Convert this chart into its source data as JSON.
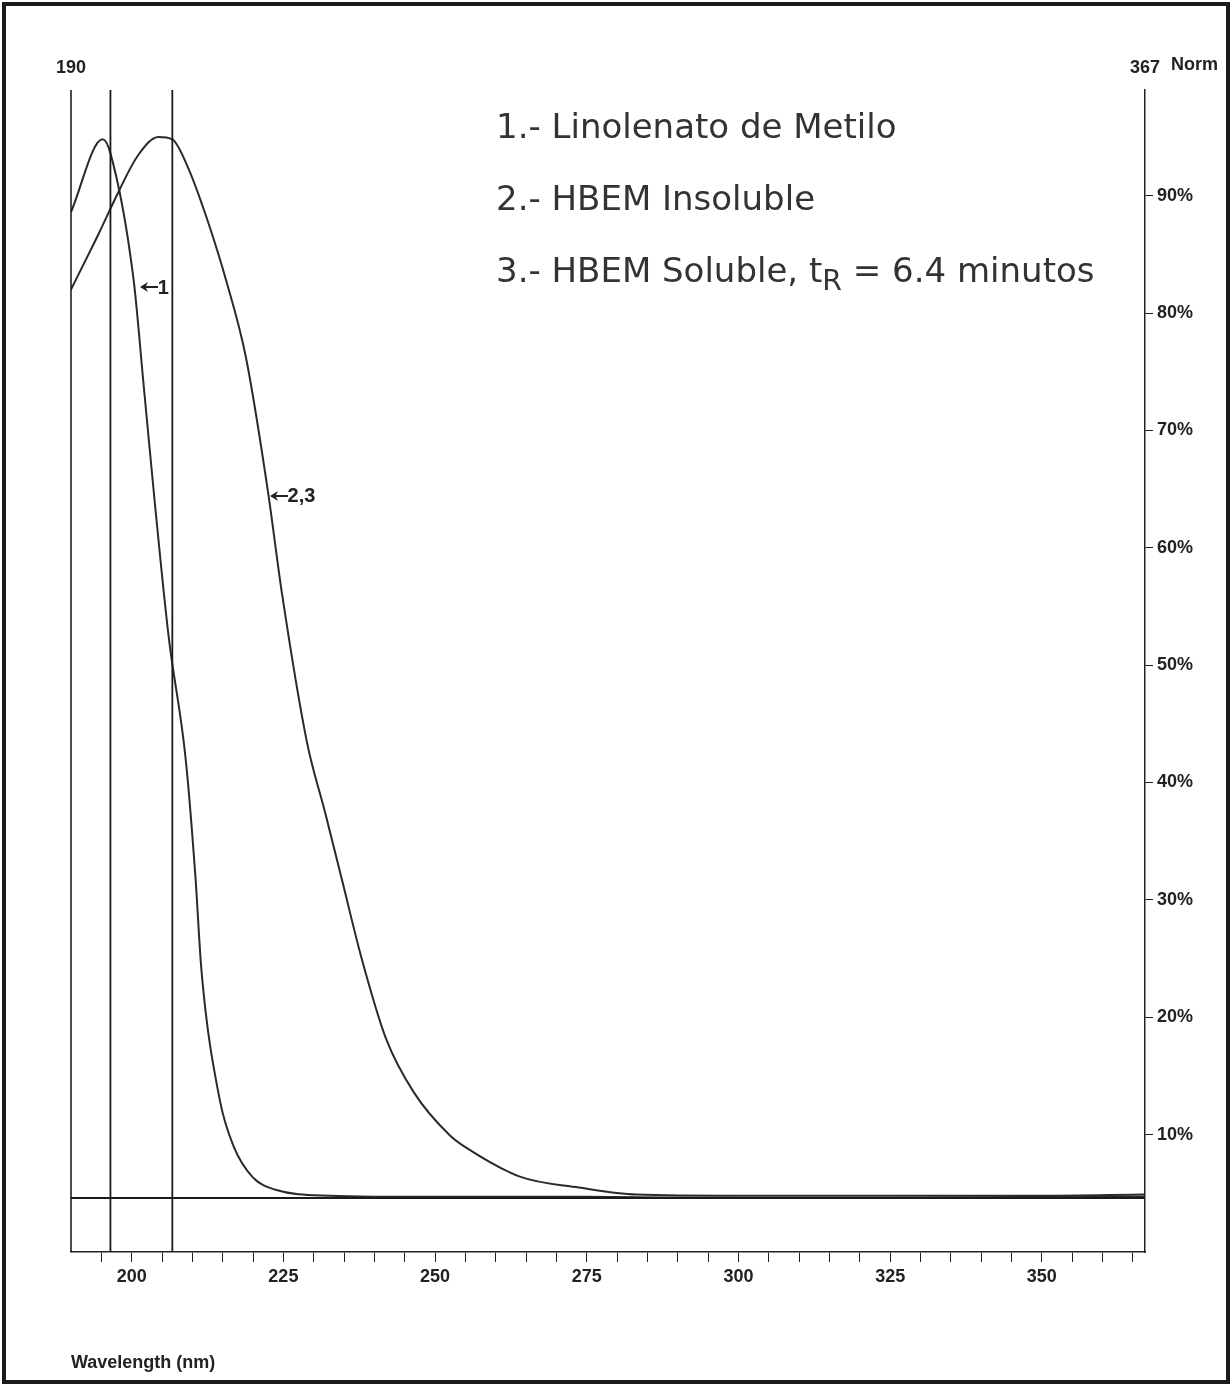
{
  "chart_data": {
    "type": "line",
    "xlabel": "Wavelength (nm)",
    "ylabel": "Norm",
    "xlim": [
      190,
      367
    ],
    "ylim": [
      0,
      99
    ],
    "x2lim": [
      190,
      367
    ],
    "x2ticks": [
      190,
      367
    ],
    "xticks": [
      {
        "value": 195,
        "label": null
      },
      200,
      {
        "value": 205,
        "label": null
      },
      {
        "value": 210,
        "label": null
      },
      {
        "value": 215,
        "label": null
      },
      {
        "value": 220,
        "label": null
      },
      225,
      {
        "value": 230,
        "label": null
      },
      {
        "value": 235,
        "label": null
      },
      {
        "value": 240,
        "label": null
      },
      {
        "value": 245,
        "label": null
      },
      250,
      {
        "value": 255,
        "label": null
      },
      {
        "value": 260,
        "label": null
      },
      {
        "value": 265,
        "label": null
      },
      {
        "value": 270,
        "label": null
      },
      275,
      {
        "value": 280,
        "label": null
      },
      {
        "value": 285,
        "label": null
      },
      {
        "value": 290,
        "label": null
      },
      {
        "value": 295,
        "label": null
      },
      300,
      {
        "value": 305,
        "label": null
      },
      {
        "value": 310,
        "label": null
      },
      {
        "value": 315,
        "label": null
      },
      {
        "value": 320,
        "label": null
      },
      325,
      {
        "value": 330,
        "label": null
      },
      {
        "value": 335,
        "label": null
      },
      {
        "value": 340,
        "label": null
      },
      {
        "value": 345,
        "label": null
      },
      350,
      {
        "value": 355,
        "label": null
      },
      {
        "value": 360,
        "label": null
      },
      {
        "value": 365,
        "label": null
      }
    ],
    "yticks": [
      {
        "value": 10,
        "label": "10%"
      },
      {
        "value": 20,
        "label": "20%"
      },
      {
        "value": 30,
        "label": "30%"
      },
      {
        "value": 40,
        "label": "40%"
      },
      {
        "value": 50,
        "label": "50%"
      },
      {
        "value": 60,
        "label": "60%"
      },
      {
        "value": 70,
        "label": "70%"
      },
      {
        "value": 80,
        "label": "80%"
      },
      {
        "value": 90,
        "label": "90%"
      }
    ],
    "grid": false,
    "legend": false,
    "marker": "none",
    "line_style": "solid",
    "series": [
      {
        "color": "#2a2a2a",
        "x": [
          190,
          195.2,
          196.5,
          200.3,
          202,
          203.8,
          206.1,
          208.9,
          210.5,
          211.5,
          214.5,
          216.8,
          219.9,
          223.7,
          232.6,
          250,
          275,
          300,
          325,
          350,
          367
        ],
        "values": [
          88.6,
          94.8,
          93.6,
          82.9,
          73.7,
          63.9,
          52.4,
          42,
          32,
          24,
          13,
          9,
          6.4,
          5.3,
          4.8,
          4.7,
          4.7,
          4.6,
          4.6,
          4.7,
          4.7
        ]
      },
      {
        "color": "#2a2a2a",
        "x": [
          190,
          194.6,
          197.9,
          201,
          204.4,
          206.7,
          209.2,
          212.3,
          215.5,
          218.8,
          222.4,
          224.8,
          228.9,
          231.9,
          234.9,
          237.8,
          241.9,
          246.5,
          252.5,
          254.8,
          264.1,
          273.7,
          283.2,
          300,
          325,
          350,
          367
        ],
        "values": [
          82,
          86.8,
          90.4,
          93.4,
          95,
          94.8,
          92.5,
          88.2,
          82.9,
          76.3,
          65,
          56,
          43.4,
          37.4,
          31.2,
          25.2,
          18.2,
          13.6,
          9.9,
          9,
          6.4,
          5.5,
          4.9,
          4.8,
          4.8,
          4.8,
          4.9
        ]
      }
    ],
    "ref_lines": [
      {
        "axis": "x",
        "value": 196.5,
        "color": "#1a1a1a"
      },
      {
        "axis": "x",
        "value": 206.7,
        "color": "#1a1a1a"
      },
      {
        "axis": "y",
        "value": 4.6,
        "color": "#1a1a1a"
      }
    ],
    "annotations": [
      "1.- Linolenato de Metilo",
      "2.- HBEM Insoluble",
      "3.- HBEM Soluble, t$_{R}$ = 6.4 minutos",
      {
        "text": "1",
        "x": 201,
        "y": 82
      },
      {
        "text": "2,3",
        "x": 222.4,
        "y": 64.2
      }
    ]
  }
}
